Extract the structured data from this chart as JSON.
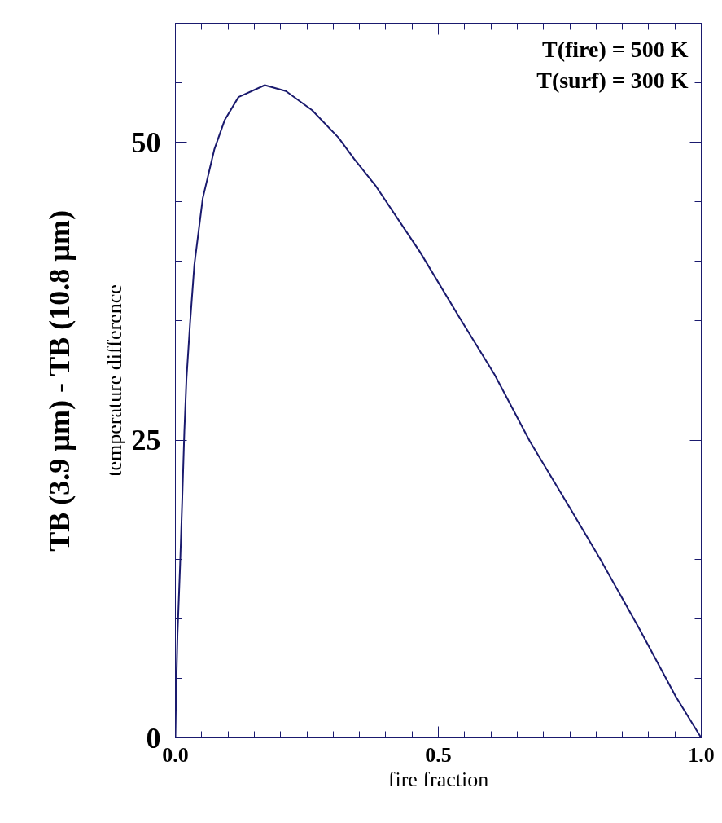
{
  "chart_data": {
    "type": "line",
    "xlabel": "fire fraction",
    "ylabel": "temperature difference",
    "annotations": [
      "T(fire) = 500 K",
      "T(surf) = 300 K",
      "TB (3.9 µm) - TB (10.8 µm)"
    ],
    "x": [
      0,
      0.001,
      0.004,
      0.009,
      0.013,
      0.017,
      0.021,
      0.028,
      0.036,
      0.052,
      0.074,
      0.094,
      0.12,
      0.17,
      0.21,
      0.26,
      0.31,
      0.34,
      0.38,
      0.465,
      0.54,
      0.607,
      0.674,
      0.749,
      0.808,
      0.883,
      0.951,
      1.0
    ],
    "series": [
      {
        "color": "#1a1a6e",
        "values": [
          0,
          3.1,
          8.7,
          14.6,
          20,
          25.7,
          30.1,
          34.9,
          39.7,
          45.3,
          49.4,
          51.9,
          53.8,
          54.8,
          54.3,
          52.7,
          50.4,
          48.6,
          46.4,
          40.8,
          35.3,
          30.5,
          24.9,
          19.4,
          15,
          9.1,
          3.5,
          0
        ]
      }
    ],
    "xlim": [
      0,
      1
    ],
    "xticks": [
      {
        "value": 0,
        "label": "0.0"
      },
      0.5,
      {
        "value": 1,
        "label": "1.0"
      }
    ],
    "ylim": [
      0,
      60
    ],
    "yticks": [
      0,
      25,
      50
    ],
    "grid": false,
    "marker": "none",
    "line_style": "solid"
  }
}
